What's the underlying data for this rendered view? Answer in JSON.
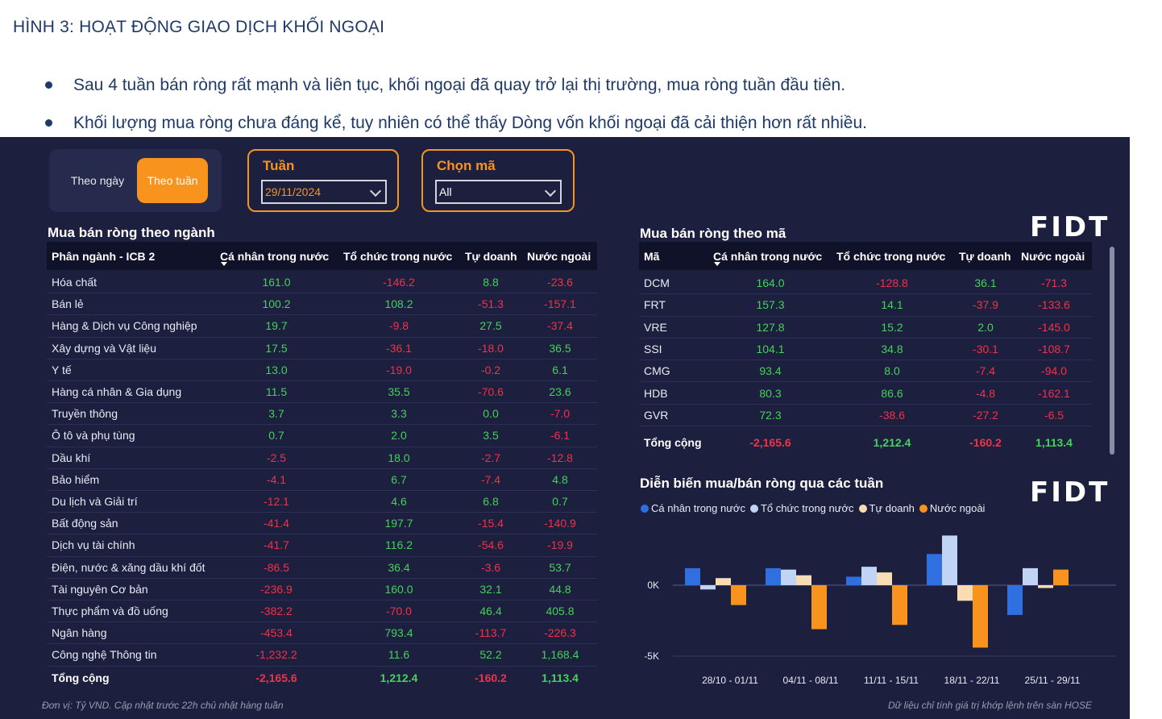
{
  "figure_title": "HÌNH 3: HOẠT ĐỘNG GIAO DỊCH KHỐI NGOẠI",
  "bullets": [
    "Sau 4 tuần bán ròng rất mạnh và liên tục, khối ngoại đã quay trở lại thị trường, mua ròng tuần đầu tiên.",
    "Khối lượng mua ròng chưa đáng kể, tuy nhiên có thể thấy Dòng vốn khối ngoại đã cải thiện hơn rất nhiều."
  ],
  "view_toggle": {
    "day_label": "Theo ngày",
    "week_label": "Theo tuần",
    "selected": "week"
  },
  "filters": {
    "week": {
      "label": "Tuần",
      "value": "29/11/2024"
    },
    "ticker": {
      "label": "Chọn mã",
      "value": "All"
    }
  },
  "logo_text": "FIDT",
  "colors": {
    "positive": "#44d25a",
    "negative": "#f0324a",
    "accent": "#f8931d",
    "background": "#1c1f3d"
  },
  "sector_table": {
    "title": "Mua bán ròng theo ngành",
    "headers": [
      "Phân ngành - ICB 2",
      "Cá nhân trong nước",
      "Tổ chức trong nước",
      "Tự doanh",
      "Nước ngoài"
    ],
    "rows": [
      [
        "Hóa chất",
        "161.0",
        "-146.2",
        "8.8",
        "-23.6"
      ],
      [
        "Bán lẻ",
        "100.2",
        "108.2",
        "-51.3",
        "-157.1"
      ],
      [
        "Hàng & Dịch vụ Công nghiệp",
        "19.7",
        "-9.8",
        "27.5",
        "-37.4"
      ],
      [
        "Xây dựng và Vật liệu",
        "17.5",
        "-36.1",
        "-18.0",
        "36.5"
      ],
      [
        "Y tế",
        "13.0",
        "-19.0",
        "-0.2",
        "6.1"
      ],
      [
        "Hàng cá nhân & Gia dụng",
        "11.5",
        "35.5",
        "-70.6",
        "23.6"
      ],
      [
        "Truyền thông",
        "3.7",
        "3.3",
        "0.0",
        "-7.0"
      ],
      [
        "Ô tô và phụ tùng",
        "0.7",
        "2.0",
        "3.5",
        "-6.1"
      ],
      [
        "Dầu khí",
        "-2.5",
        "18.0",
        "-2.7",
        "-12.8"
      ],
      [
        "Bảo hiểm",
        "-4.1",
        "6.7",
        "-7.4",
        "4.8"
      ],
      [
        "Du lịch và Giải trí",
        "-12.1",
        "4.6",
        "6.8",
        "0.7"
      ],
      [
        "Bất động sản",
        "-41.4",
        "197.7",
        "-15.4",
        "-140.9"
      ],
      [
        "Dịch vụ tài chính",
        "-41.7",
        "116.2",
        "-54.6",
        "-19.9"
      ],
      [
        "Điện, nước & xăng dầu khí đốt",
        "-86.5",
        "36.4",
        "-3.6",
        "53.7"
      ],
      [
        "Tài nguyên Cơ bản",
        "-236.9",
        "160.0",
        "32.1",
        "44.8"
      ],
      [
        "Thực phẩm và đồ uống",
        "-382.2",
        "-70.0",
        "46.4",
        "405.8"
      ],
      [
        "Ngân hàng",
        "-453.4",
        "793.4",
        "-113.7",
        "-226.3"
      ],
      [
        "Công nghệ Thông tin",
        "-1,232.2",
        "11.6",
        "52.2",
        "1,168.4"
      ]
    ],
    "total": [
      "Tổng cộng",
      "-2,165.6",
      "1,212.4",
      "-160.2",
      "1,113.4"
    ]
  },
  "ticker_table": {
    "title": "Mua bán ròng theo mã",
    "headers": [
      "Mã",
      "Cá nhân trong nước",
      "Tổ chức trong nước",
      "Tự doanh",
      "Nước ngoài"
    ],
    "rows": [
      [
        "DCM",
        "164.0",
        "-128.8",
        "36.1",
        "-71.3"
      ],
      [
        "FRT",
        "157.3",
        "14.1",
        "-37.9",
        "-133.6"
      ],
      [
        "VRE",
        "127.8",
        "15.2",
        "2.0",
        "-145.0"
      ],
      [
        "SSI",
        "104.1",
        "34.8",
        "-30.1",
        "-108.7"
      ],
      [
        "CMG",
        "93.4",
        "8.0",
        "-7.4",
        "-94.0"
      ],
      [
        "HDB",
        "80.3",
        "86.6",
        "-4.8",
        "-162.1"
      ],
      [
        "GVR",
        "72.3",
        "-38.6",
        "-27.2",
        "-6.5"
      ]
    ],
    "total": [
      "Tổng cộng",
      "-2,165.6",
      "1,212.4",
      "-160.2",
      "1,113.4"
    ]
  },
  "chart_title": "Diễn biến mua/bán ròng qua các tuần",
  "chart_data": {
    "type": "bar",
    "categories": [
      "28/10 - 01/11",
      "04/11 - 08/11",
      "11/11 - 15/11",
      "18/11 - 22/11",
      "25/11 - 29/11"
    ],
    "series": [
      {
        "name": "Cá nhân trong nước",
        "color": "#2f6fe0",
        "values": [
          1200,
          1200,
          600,
          2200,
          -2100
        ]
      },
      {
        "name": "Tổ chức trong nước",
        "color": "#c2d4f6",
        "values": [
          -300,
          1100,
          1300,
          3500,
          1200
        ]
      },
      {
        "name": "Tự doanh",
        "color": "#f7dcb4",
        "values": [
          500,
          700,
          900,
          -1100,
          -200
        ]
      },
      {
        "name": "Nước ngoài",
        "color": "#f8931d",
        "values": [
          -1400,
          -3100,
          -2800,
          -4400,
          1100
        ]
      }
    ],
    "ytick_labels": [
      "0K",
      "-5K"
    ],
    "yticks": [
      0,
      -5000
    ],
    "ylim": [
      -5500,
      4000
    ],
    "legend_position": "top-left"
  },
  "footnotes": {
    "left": "Đơn vị: Tỷ VND. Cập nhật trước 22h chủ nhật hàng tuần",
    "right": "Dữ liệu chỉ tính giá trị khớp lệnh trên sàn HOSE"
  }
}
